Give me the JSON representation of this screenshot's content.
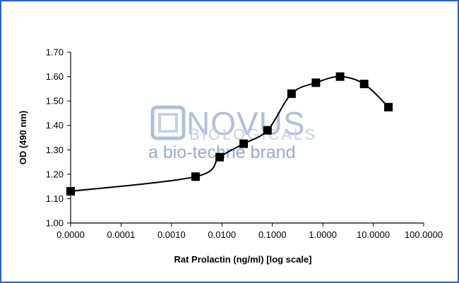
{
  "watermark": {
    "line1": "NOVUS",
    "line2": "BIOLOGICALS",
    "line3": "a bio-techne brand",
    "logo_icon": "novus-logo-icon"
  },
  "colors": {
    "frame": "#2f5fc9",
    "series": "#000000",
    "watermark": "#9fb7d6"
  },
  "chart_data": {
    "type": "line",
    "title": "",
    "xlabel": "Rat Prolactin (ng/ml) [log scale]",
    "ylabel": "OD (490 nm)",
    "x_scale": "log",
    "x_tick_labels": [
      "0.0000",
      "0.0001",
      "0.0010",
      "0.0100",
      "0.1000",
      "1.0000",
      "10.0000",
      "100.0000"
    ],
    "y_tick_labels": [
      "1.00",
      "1.10",
      "1.20",
      "1.30",
      "1.40",
      "1.50",
      "1.60",
      "1.70"
    ],
    "ylim": [
      1.0,
      1.7
    ],
    "grid": false,
    "legend": "none",
    "marker": "square",
    "series": [
      {
        "x": [
          1e-05,
          0.003,
          0.009,
          0.027,
          0.08,
          0.24,
          0.73,
          2.2,
          6.6,
          20
        ],
        "y": [
          1.13,
          1.19,
          1.27,
          1.325,
          1.38,
          1.53,
          1.575,
          1.6,
          1.57,
          1.475
        ]
      }
    ]
  }
}
